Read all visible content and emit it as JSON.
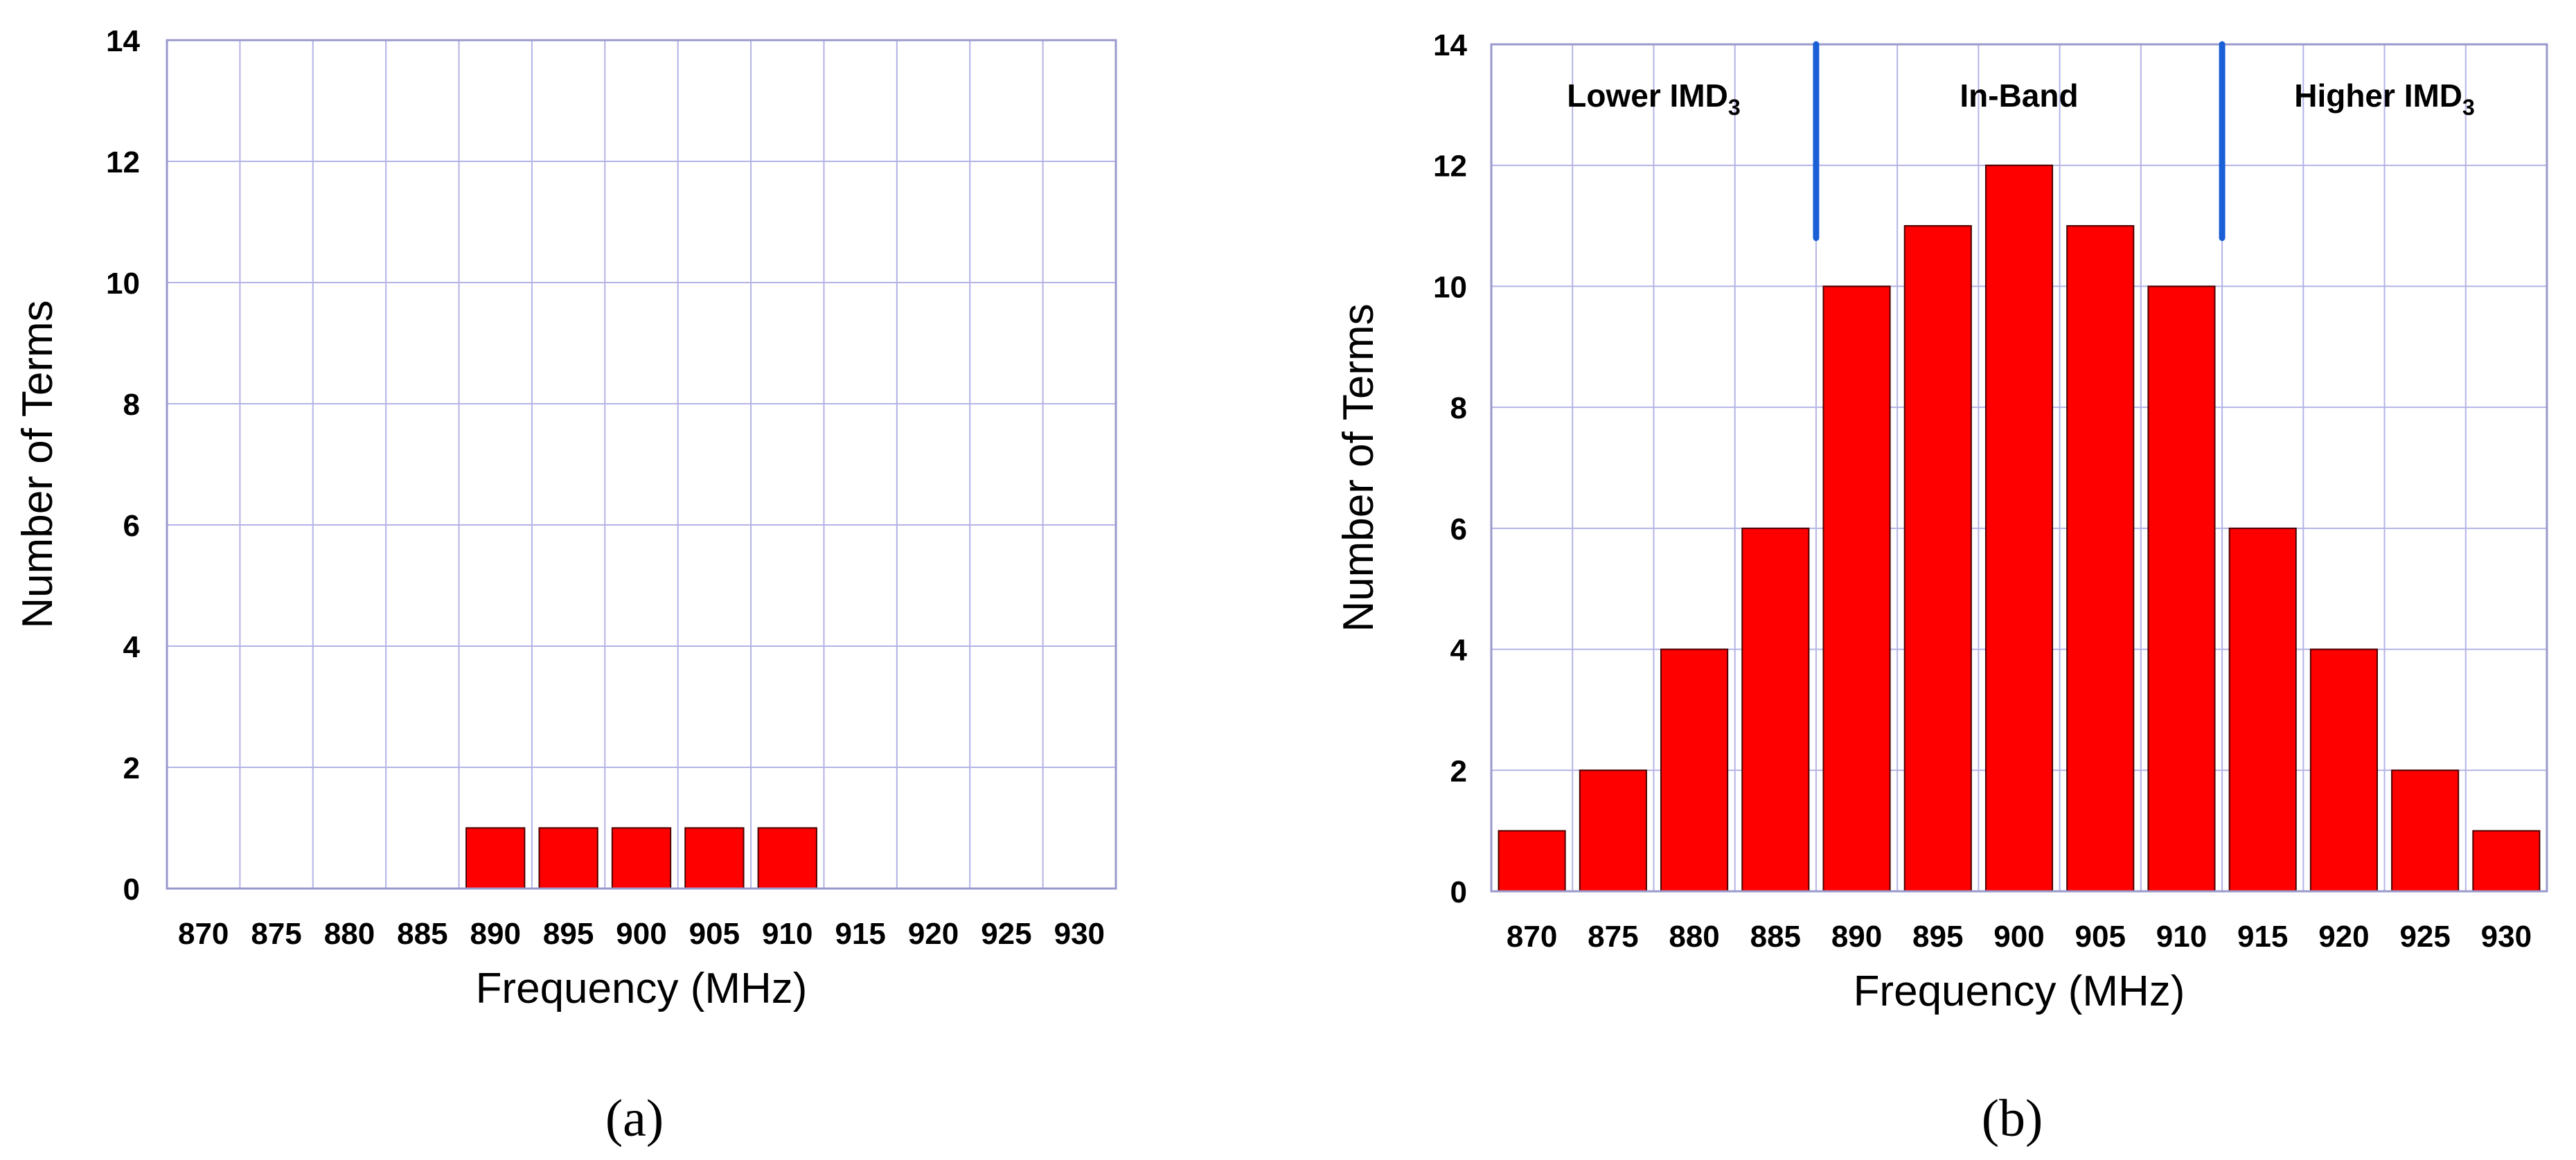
{
  "chart_data": [
    {
      "type": "bar",
      "panel_label": "(a)",
      "categories": [
        "870",
        "875",
        "880",
        "885",
        "890",
        "895",
        "900",
        "905",
        "910",
        "915",
        "920",
        "925",
        "930"
      ],
      "values": [
        0,
        0,
        0,
        0,
        1,
        1,
        1,
        1,
        1,
        0,
        0,
        0,
        0
      ],
      "xlabel": "Frequency (MHz)",
      "ylabel": "Number of Terms",
      "ylim": [
        0,
        14
      ],
      "yticks": [
        "0",
        "2",
        "4",
        "6",
        "8",
        "10",
        "12",
        "14"
      ],
      "grid": true,
      "regions": [],
      "dividers": []
    },
    {
      "type": "bar",
      "panel_label": "(b)",
      "categories": [
        "870",
        "875",
        "880",
        "885",
        "890",
        "895",
        "900",
        "905",
        "910",
        "915",
        "920",
        "925",
        "930"
      ],
      "values": [
        1,
        2,
        4,
        6,
        10,
        11,
        12,
        11,
        10,
        6,
        4,
        2,
        1
      ],
      "xlabel": "Frequency (MHz)",
      "ylabel": "Number of Terms",
      "ylim": [
        0,
        14
      ],
      "yticks": [
        "0",
        "2",
        "4",
        "6",
        "8",
        "10",
        "12",
        "14"
      ],
      "grid": true,
      "regions": [
        {
          "label": "Lower IMD",
          "sub": "3",
          "from": "870",
          "to": "885"
        },
        {
          "label": "In-Band",
          "sub": "",
          "from": "890",
          "to": "910"
        },
        {
          "label": "Higher IMD",
          "sub": "3",
          "from": "915",
          "to": "930"
        }
      ],
      "dividers": [
        {
          "after": "885",
          "y_from": 10.8,
          "y_to": 14
        },
        {
          "after": "910",
          "y_from": 10.8,
          "y_to": 14
        }
      ]
    }
  ],
  "colors": {
    "bar_fill": "#ff0000",
    "bar_stroke": "#4a0000",
    "grid": "#b3b3e6",
    "frame": "#9999cc",
    "divider": "#1a5fd6"
  }
}
